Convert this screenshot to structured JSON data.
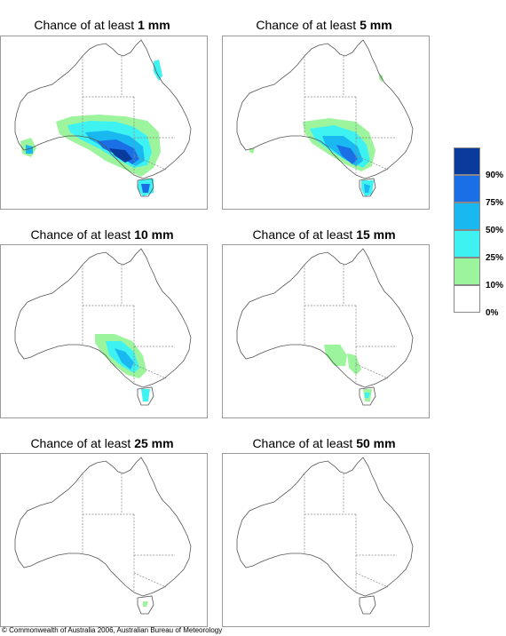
{
  "panels": [
    {
      "prefix": "Chance of at least ",
      "amount": "1 mm"
    },
    {
      "prefix": "Chance of at least ",
      "amount": "5 mm"
    },
    {
      "prefix": "Chance of at least ",
      "amount": "10 mm"
    },
    {
      "prefix": "Chance of at least ",
      "amount": "15 mm"
    },
    {
      "prefix": "Chance of at least ",
      "amount": "25 mm"
    },
    {
      "prefix": "Chance of at least ",
      "amount": "50 mm"
    }
  ],
  "legend": {
    "labels": [
      "90%",
      "75%",
      "50%",
      "25%",
      "10%",
      "0%"
    ],
    "colors": [
      "#0a3a9c",
      "#1a6fe6",
      "#19b8f0",
      "#3ef2f2",
      "#9cf59c",
      "#ffffff"
    ]
  },
  "copyright": "© Commonwealth of Australia 2006, Australian Bureau of Meteorology"
}
